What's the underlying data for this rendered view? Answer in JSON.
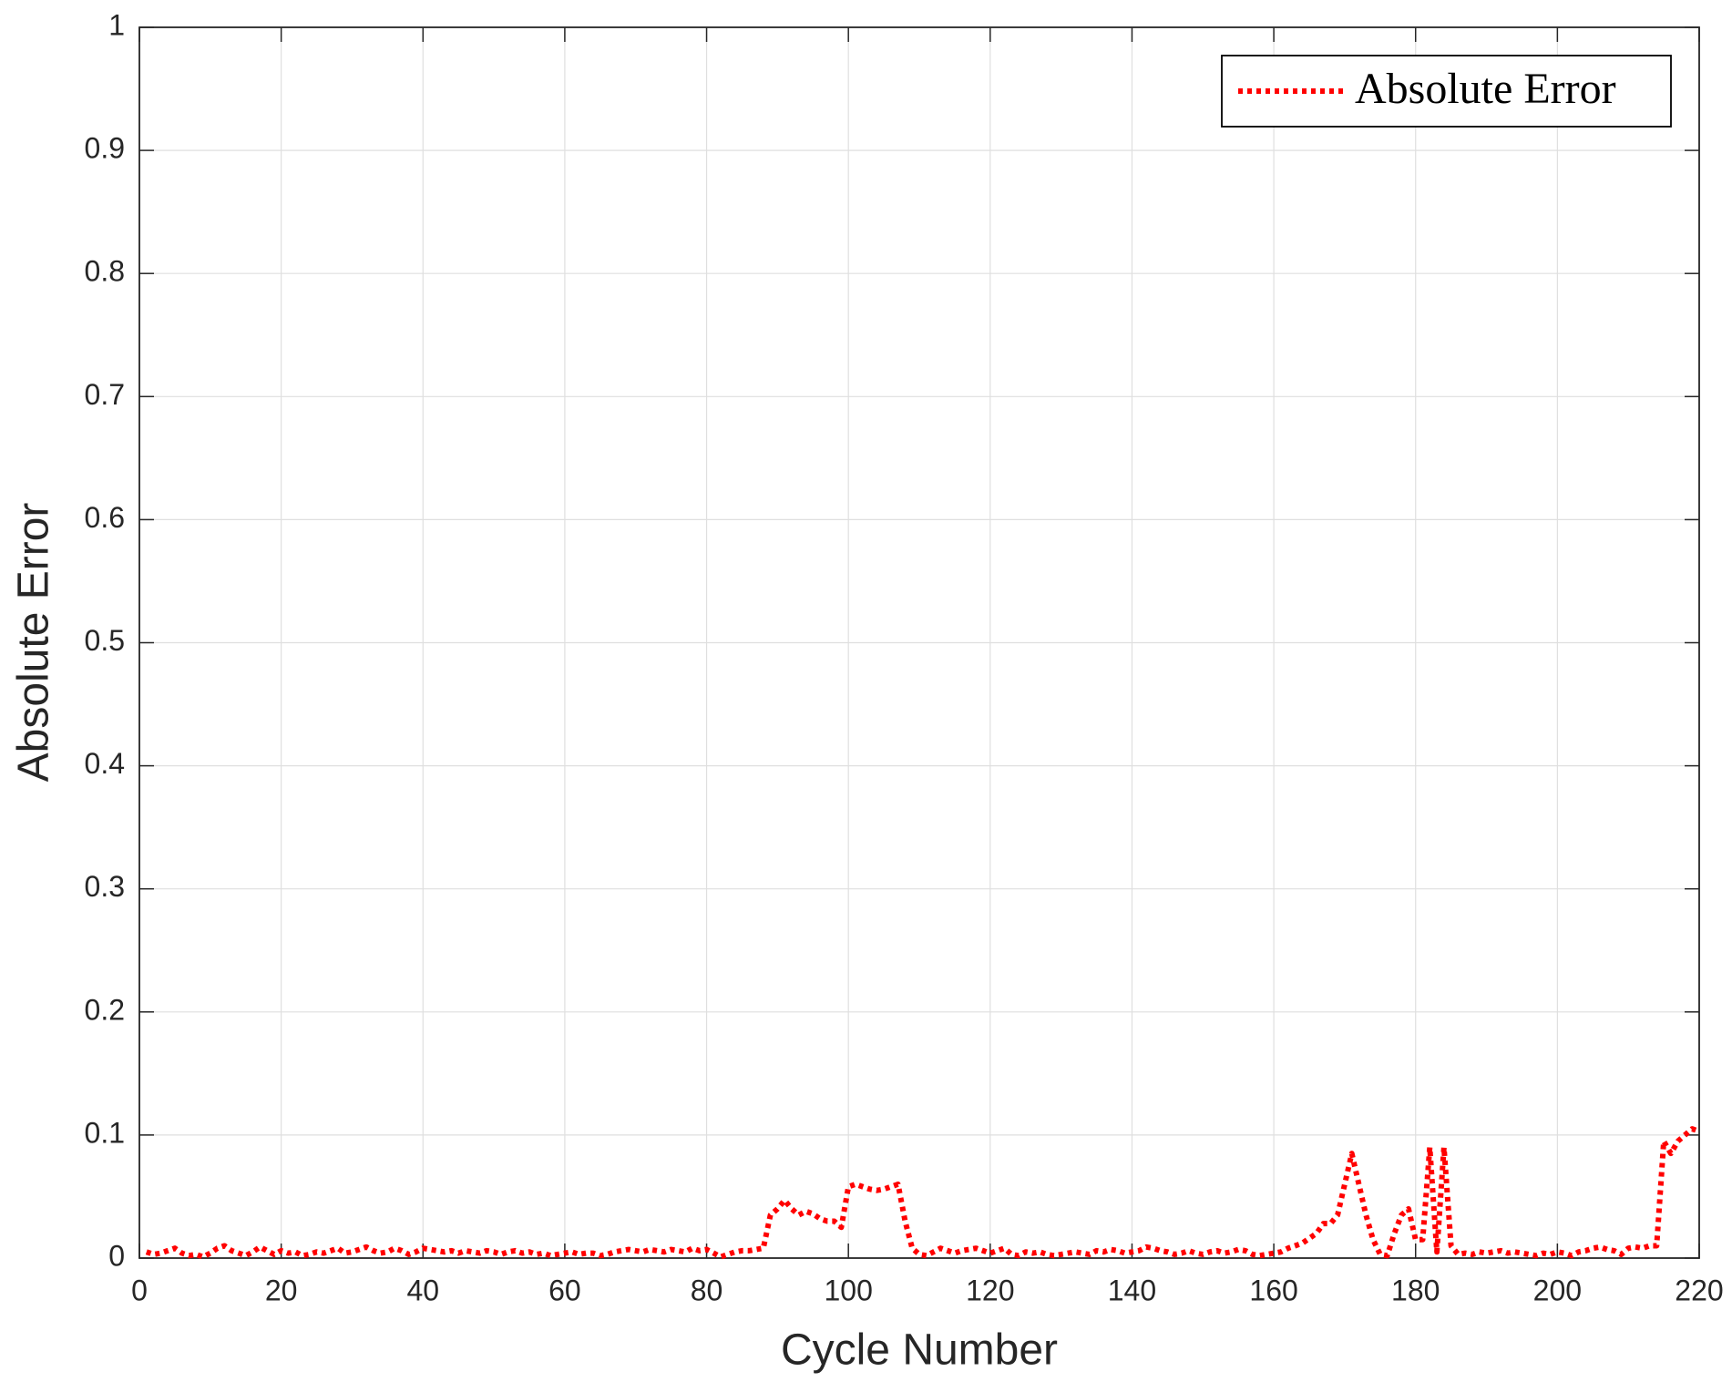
{
  "chart_data": {
    "type": "line",
    "xlabel": "Cycle Number",
    "ylabel": "Absolute Error",
    "x": [
      1,
      2,
      3,
      4,
      5,
      6,
      7,
      8,
      9,
      10,
      11,
      12,
      13,
      14,
      15,
      16,
      17,
      18,
      19,
      20,
      21,
      22,
      23,
      24,
      25,
      26,
      27,
      28,
      29,
      30,
      31,
      32,
      33,
      34,
      35,
      36,
      37,
      38,
      39,
      40,
      41,
      42,
      43,
      44,
      45,
      46,
      47,
      48,
      49,
      50,
      51,
      52,
      53,
      54,
      55,
      56,
      57,
      58,
      59,
      60,
      61,
      62,
      63,
      64,
      65,
      66,
      67,
      68,
      69,
      70,
      71,
      72,
      73,
      74,
      75,
      76,
      77,
      78,
      79,
      80,
      81,
      82,
      83,
      84,
      85,
      86,
      87,
      88,
      89,
      90,
      91,
      92,
      93,
      94,
      95,
      96,
      97,
      98,
      99,
      100,
      101,
      102,
      103,
      104,
      105,
      106,
      107,
      108,
      109,
      110,
      111,
      112,
      113,
      114,
      115,
      116,
      117,
      118,
      119,
      120,
      121,
      122,
      123,
      124,
      125,
      126,
      127,
      128,
      129,
      130,
      131,
      132,
      133,
      134,
      135,
      136,
      137,
      138,
      139,
      140,
      141,
      142,
      143,
      144,
      145,
      146,
      147,
      148,
      149,
      150,
      151,
      152,
      153,
      154,
      155,
      156,
      157,
      158,
      159,
      160,
      161,
      162,
      163,
      164,
      165,
      166,
      167,
      168,
      169,
      170,
      171,
      172,
      173,
      174,
      175,
      176,
      177,
      178,
      179,
      180,
      181,
      182,
      183,
      184,
      185,
      186,
      187,
      188,
      189,
      190,
      191,
      192,
      193,
      194,
      195,
      196,
      197,
      198,
      199,
      200,
      201,
      202,
      203,
      204,
      205,
      206,
      207,
      208,
      209,
      210,
      211,
      212,
      213,
      214,
      215,
      216,
      217,
      218,
      219,
      220
    ],
    "series": [
      {
        "name": "Absolute Error",
        "color": "#ff0000",
        "values": [
          0.005,
          0.003,
          0.004,
          0.006,
          0.008,
          0.004,
          0.002,
          0.003,
          0.001,
          0.004,
          0.008,
          0.01,
          0.006,
          0.004,
          0.002,
          0.005,
          0.009,
          0.006,
          0.003,
          0.006,
          0.004,
          0.005,
          0.002,
          0.003,
          0.005,
          0.004,
          0.006,
          0.008,
          0.004,
          0.005,
          0.007,
          0.009,
          0.006,
          0.004,
          0.005,
          0.008,
          0.006,
          0.003,
          0.005,
          0.008,
          0.007,
          0.006,
          0.005,
          0.006,
          0.004,
          0.006,
          0.005,
          0.004,
          0.006,
          0.005,
          0.003,
          0.005,
          0.006,
          0.004,
          0.005,
          0.003,
          0.004,
          0.002,
          0.003,
          0.004,
          0.005,
          0.003,
          0.004,
          0.004,
          0.002,
          0.003,
          0.005,
          0.006,
          0.007,
          0.006,
          0.005,
          0.007,
          0.006,
          0.005,
          0.007,
          0.006,
          0.005,
          0.008,
          0.006,
          0.007,
          0.004,
          0.001,
          0.003,
          0.005,
          0.006,
          0.006,
          0.007,
          0.008,
          0.035,
          0.04,
          0.047,
          0.04,
          0.035,
          0.038,
          0.036,
          0.032,
          0.03,
          0.03,
          0.025,
          0.058,
          0.06,
          0.058,
          0.056,
          0.055,
          0.056,
          0.058,
          0.06,
          0.03,
          0.008,
          0.003,
          0.002,
          0.005,
          0.008,
          0.006,
          0.004,
          0.006,
          0.007,
          0.008,
          0.006,
          0.004,
          0.006,
          0.008,
          0.003,
          0.002,
          0.005,
          0.004,
          0.005,
          0.003,
          0.002,
          0.003,
          0.004,
          0.005,
          0.004,
          0.003,
          0.006,
          0.005,
          0.007,
          0.006,
          0.004,
          0.005,
          0.006,
          0.009,
          0.008,
          0.006,
          0.005,
          0.003,
          0.004,
          0.006,
          0.004,
          0.003,
          0.005,
          0.006,
          0.004,
          0.005,
          0.007,
          0.006,
          0.003,
          0.002,
          0.003,
          0.004,
          0.005,
          0.008,
          0.01,
          0.012,
          0.016,
          0.02,
          0.028,
          0.028,
          0.035,
          0.06,
          0.085,
          0.06,
          0.035,
          0.015,
          0.003,
          0.002,
          0.02,
          0.035,
          0.04,
          0.015,
          0.015,
          0.09,
          0.005,
          0.09,
          0.01,
          0.003,
          0.004,
          0.003,
          0.005,
          0.004,
          0.005,
          0.006,
          0.004,
          0.005,
          0.004,
          0.003,
          0.002,
          0.004,
          0.003,
          0.005,
          0.004,
          0.002,
          0.005,
          0.006,
          0.008,
          0.009,
          0.007,
          0.006,
          0.003,
          0.008,
          0.009,
          0.008,
          0.01,
          0.01,
          0.095,
          0.085,
          0.095,
          0.1,
          0.105,
          0.103
        ]
      }
    ],
    "xlim": [
      0,
      220
    ],
    "ylim": [
      0,
      1
    ],
    "xticks": [
      0,
      20,
      40,
      60,
      80,
      100,
      120,
      140,
      160,
      180,
      200,
      220
    ],
    "yticks": [
      0,
      0.1,
      0.2,
      0.3,
      0.4,
      0.5,
      0.6,
      0.7,
      0.8,
      0.9,
      1
    ],
    "grid": true,
    "legend": "upper right"
  }
}
